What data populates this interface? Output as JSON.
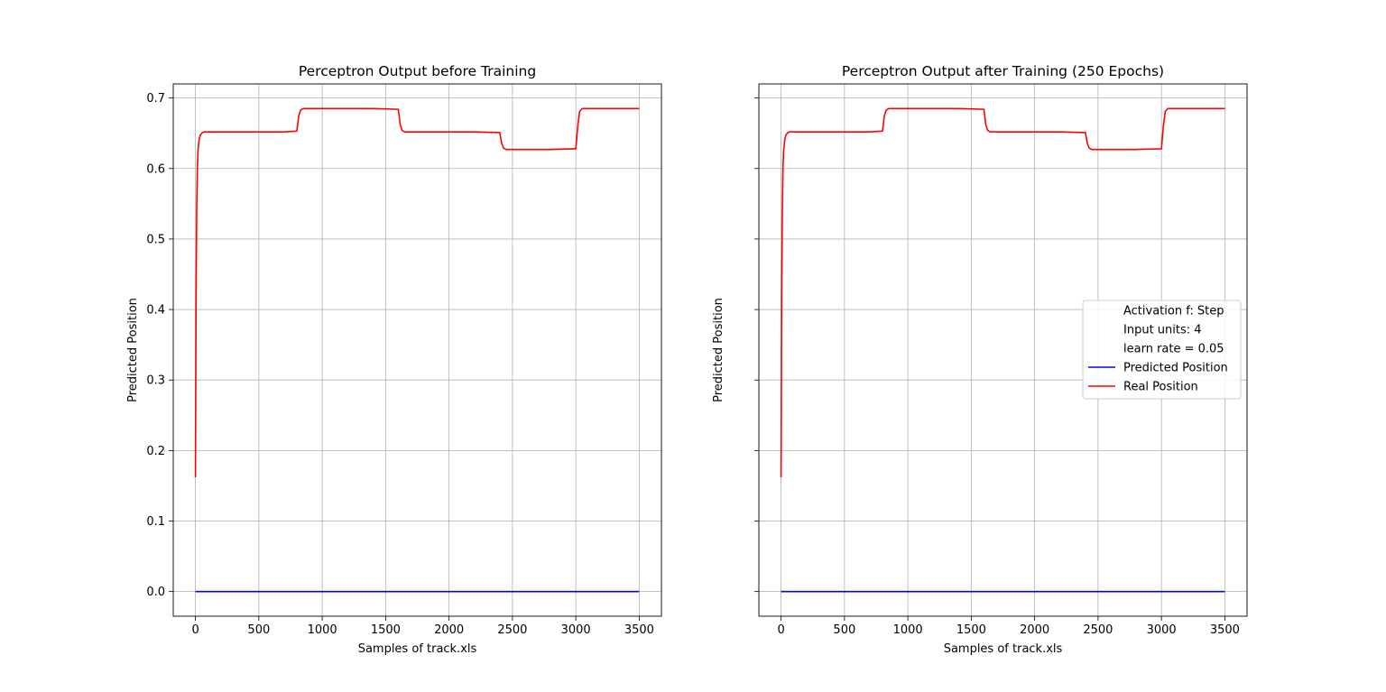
{
  "colors": {
    "predicted": "#0000ff",
    "real": "#ff0000",
    "grid": "#b0b0b0"
  },
  "chart_data": [
    {
      "type": "line",
      "title": "Perceptron Output before Training",
      "xlabel": "Samples of track.xls",
      "ylabel": "Predicted Position",
      "xlim": [
        -175,
        3675
      ],
      "ylim": [
        -0.035,
        0.72
      ],
      "xticks": [
        0,
        500,
        1000,
        1500,
        2000,
        2500,
        3000,
        3500
      ],
      "xtick_labels": [
        "0",
        "500",
        "1000",
        "1500",
        "2000",
        "2500",
        "3000",
        "3500"
      ],
      "yticks": [
        0.0,
        0.1,
        0.2,
        0.3,
        0.4,
        0.5,
        0.6,
        0.7
      ],
      "ytick_labels": [
        "0.0",
        "0.1",
        "0.2",
        "0.3",
        "0.4",
        "0.5",
        "0.6",
        "0.7"
      ],
      "show_ytick_labels": true,
      "grid": true,
      "legend": null,
      "series": [
        {
          "key": "predicted",
          "x": [
            0,
            3500
          ],
          "y": [
            0.0,
            0.0
          ]
        },
        {
          "key": "real",
          "x": [
            0,
            5,
            10,
            15,
            20,
            30,
            40,
            55,
            70,
            100,
            300,
            500,
            700,
            800,
            815,
            830,
            850,
            1000,
            1200,
            1400,
            1600,
            1615,
            1630,
            1650,
            1800,
            2000,
            2200,
            2400,
            2415,
            2430,
            2450,
            2600,
            2800,
            3000,
            3015,
            3030,
            3050,
            3200,
            3500
          ],
          "y": [
            0.162,
            0.42,
            0.54,
            0.6,
            0.625,
            0.642,
            0.648,
            0.651,
            0.652,
            0.652,
            0.652,
            0.652,
            0.652,
            0.653,
            0.675,
            0.683,
            0.685,
            0.685,
            0.685,
            0.685,
            0.684,
            0.662,
            0.654,
            0.652,
            0.652,
            0.652,
            0.652,
            0.651,
            0.636,
            0.629,
            0.627,
            0.627,
            0.627,
            0.628,
            0.66,
            0.681,
            0.685,
            0.685,
            0.685
          ]
        }
      ]
    },
    {
      "type": "line",
      "title": "Perceptron Output after Training (250 Epochs)",
      "xlabel": "Samples of track.xls",
      "ylabel": "Predicted Position",
      "xlim": [
        -175,
        3675
      ],
      "ylim": [
        -0.035,
        0.72
      ],
      "xticks": [
        0,
        500,
        1000,
        1500,
        2000,
        2500,
        3000,
        3500
      ],
      "xtick_labels": [
        "0",
        "500",
        "1000",
        "1500",
        "2000",
        "2500",
        "3000",
        "3500"
      ],
      "yticks": [
        0.0,
        0.1,
        0.2,
        0.3,
        0.4,
        0.5,
        0.6,
        0.7
      ],
      "ytick_labels": [
        "0.0",
        "0.1",
        "0.2",
        "0.3",
        "0.4",
        "0.5",
        "0.6",
        "0.7"
      ],
      "show_ytick_labels": false,
      "grid": true,
      "legend": {
        "placement": "center-right",
        "entries": [
          {
            "label": "Activation f: Step",
            "key": null
          },
          {
            "label": "Input units: 4",
            "key": null
          },
          {
            "label": "learn rate = 0.05",
            "key": null
          },
          {
            "label": "Predicted Position",
            "key": "predicted"
          },
          {
            "label": "Real Position",
            "key": "real"
          }
        ]
      },
      "series": [
        {
          "key": "predicted",
          "x": [
            0,
            3500
          ],
          "y": [
            0.0,
            0.0
          ]
        },
        {
          "key": "real",
          "x": [
            0,
            5,
            10,
            15,
            20,
            30,
            40,
            55,
            70,
            100,
            300,
            500,
            700,
            800,
            815,
            830,
            850,
            1000,
            1200,
            1400,
            1600,
            1615,
            1630,
            1650,
            1800,
            2000,
            2200,
            2400,
            2415,
            2430,
            2450,
            2600,
            2800,
            3000,
            3015,
            3030,
            3050,
            3200,
            3500
          ],
          "y": [
            0.162,
            0.42,
            0.54,
            0.6,
            0.625,
            0.642,
            0.648,
            0.651,
            0.652,
            0.652,
            0.652,
            0.652,
            0.652,
            0.653,
            0.675,
            0.683,
            0.685,
            0.685,
            0.685,
            0.685,
            0.684,
            0.662,
            0.654,
            0.652,
            0.652,
            0.652,
            0.652,
            0.651,
            0.636,
            0.629,
            0.627,
            0.627,
            0.627,
            0.628,
            0.66,
            0.681,
            0.685,
            0.685,
            0.685
          ]
        }
      ]
    }
  ]
}
